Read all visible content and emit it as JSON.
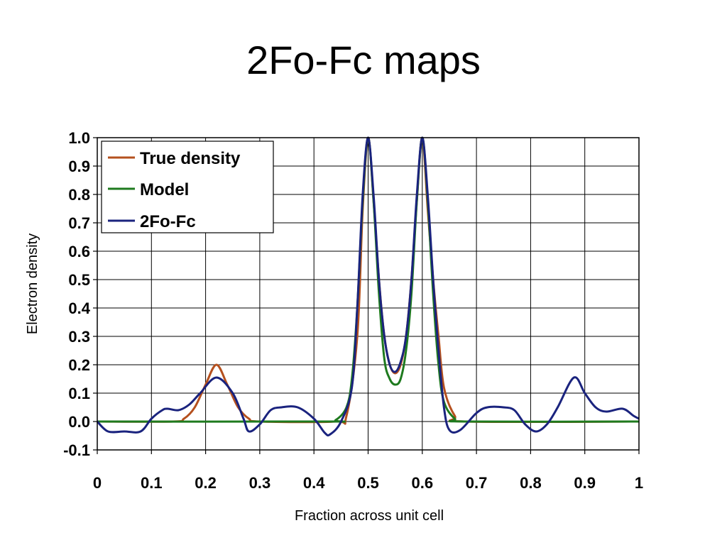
{
  "title": "2Fo-Fc maps",
  "chart_data": {
    "type": "line",
    "xlabel": "Fraction across unit cell",
    "ylabel": "Electron density",
    "xlim": [
      0,
      1
    ],
    "ylim": [
      -0.1,
      1.0
    ],
    "xticks": [
      "0",
      "0.1",
      "0.2",
      "0.3",
      "0.4",
      "0.5",
      "0.6",
      "0.7",
      "0.8",
      "0.9",
      "1"
    ],
    "yticks": [
      "-0.1",
      "0.0",
      "0.1",
      "0.2",
      "0.3",
      "0.4",
      "0.5",
      "0.6",
      "0.7",
      "0.8",
      "0.9",
      "1.0"
    ],
    "grid": true,
    "legend_position": "top-left",
    "series": [
      {
        "name": "True density",
        "color": "#B5501E",
        "x": [
          0,
          0.14,
          0.16,
          0.18,
          0.2,
          0.22,
          0.24,
          0.26,
          0.28,
          0.3,
          0.44,
          0.46,
          0.48,
          0.49,
          0.5,
          0.51,
          0.52,
          0.53,
          0.54,
          0.55,
          0.56,
          0.57,
          0.58,
          0.59,
          0.6,
          0.61,
          0.62,
          0.63,
          0.64,
          0.66,
          0.68,
          1.0
        ],
        "y": [
          0,
          0,
          0.01,
          0.05,
          0.13,
          0.2,
          0.13,
          0.05,
          0.01,
          0,
          0,
          0.02,
          0.3,
          0.75,
          1.0,
          0.78,
          0.5,
          0.3,
          0.2,
          0.17,
          0.2,
          0.3,
          0.5,
          0.78,
          1.0,
          0.75,
          0.5,
          0.3,
          0.12,
          0.02,
          0,
          0
        ]
      },
      {
        "name": "Model",
        "color": "#1E7A1E",
        "x": [
          0,
          0.42,
          0.44,
          0.46,
          0.47,
          0.48,
          0.49,
          0.5,
          0.51,
          0.52,
          0.53,
          0.54,
          0.55,
          0.56,
          0.57,
          0.58,
          0.59,
          0.6,
          0.61,
          0.62,
          0.63,
          0.64,
          0.66,
          0.68,
          1.0
        ],
        "y": [
          0,
          0,
          0.005,
          0.05,
          0.15,
          0.4,
          0.78,
          1.0,
          0.78,
          0.45,
          0.22,
          0.15,
          0.13,
          0.15,
          0.25,
          0.45,
          0.78,
          1.0,
          0.78,
          0.45,
          0.2,
          0.07,
          0.01,
          0,
          0
        ]
      },
      {
        "name": "2Fo-Fc",
        "color": "#1A237E",
        "x": [
          0,
          0.02,
          0.05,
          0.08,
          0.1,
          0.12,
          0.13,
          0.15,
          0.17,
          0.19,
          0.22,
          0.25,
          0.27,
          0.28,
          0.3,
          0.32,
          0.34,
          0.37,
          0.4,
          0.42,
          0.43,
          0.45,
          0.47,
          0.48,
          0.49,
          0.5,
          0.51,
          0.52,
          0.53,
          0.54,
          0.55,
          0.56,
          0.57,
          0.58,
          0.59,
          0.6,
          0.61,
          0.62,
          0.63,
          0.64,
          0.65,
          0.67,
          0.7,
          0.72,
          0.75,
          0.77,
          0.79,
          0.81,
          0.83,
          0.85,
          0.88,
          0.9,
          0.92,
          0.94,
          0.97,
          0.99,
          1.0
        ],
        "y": [
          0,
          -0.035,
          -0.035,
          -0.035,
          0.01,
          0.04,
          0.045,
          0.04,
          0.06,
          0.1,
          0.155,
          0.1,
          0.01,
          -0.035,
          -0.01,
          0.04,
          0.05,
          0.05,
          0.01,
          -0.04,
          -0.045,
          0.0,
          0.12,
          0.4,
          0.8,
          1.0,
          0.8,
          0.5,
          0.3,
          0.2,
          0.175,
          0.21,
          0.3,
          0.5,
          0.8,
          1.0,
          0.8,
          0.5,
          0.25,
          0.05,
          -0.03,
          -0.03,
          0.03,
          0.05,
          0.05,
          0.04,
          -0.01,
          -0.035,
          -0.01,
          0.05,
          0.155,
          0.1,
          0.05,
          0.035,
          0.045,
          0.02,
          0.01
        ]
      }
    ]
  }
}
